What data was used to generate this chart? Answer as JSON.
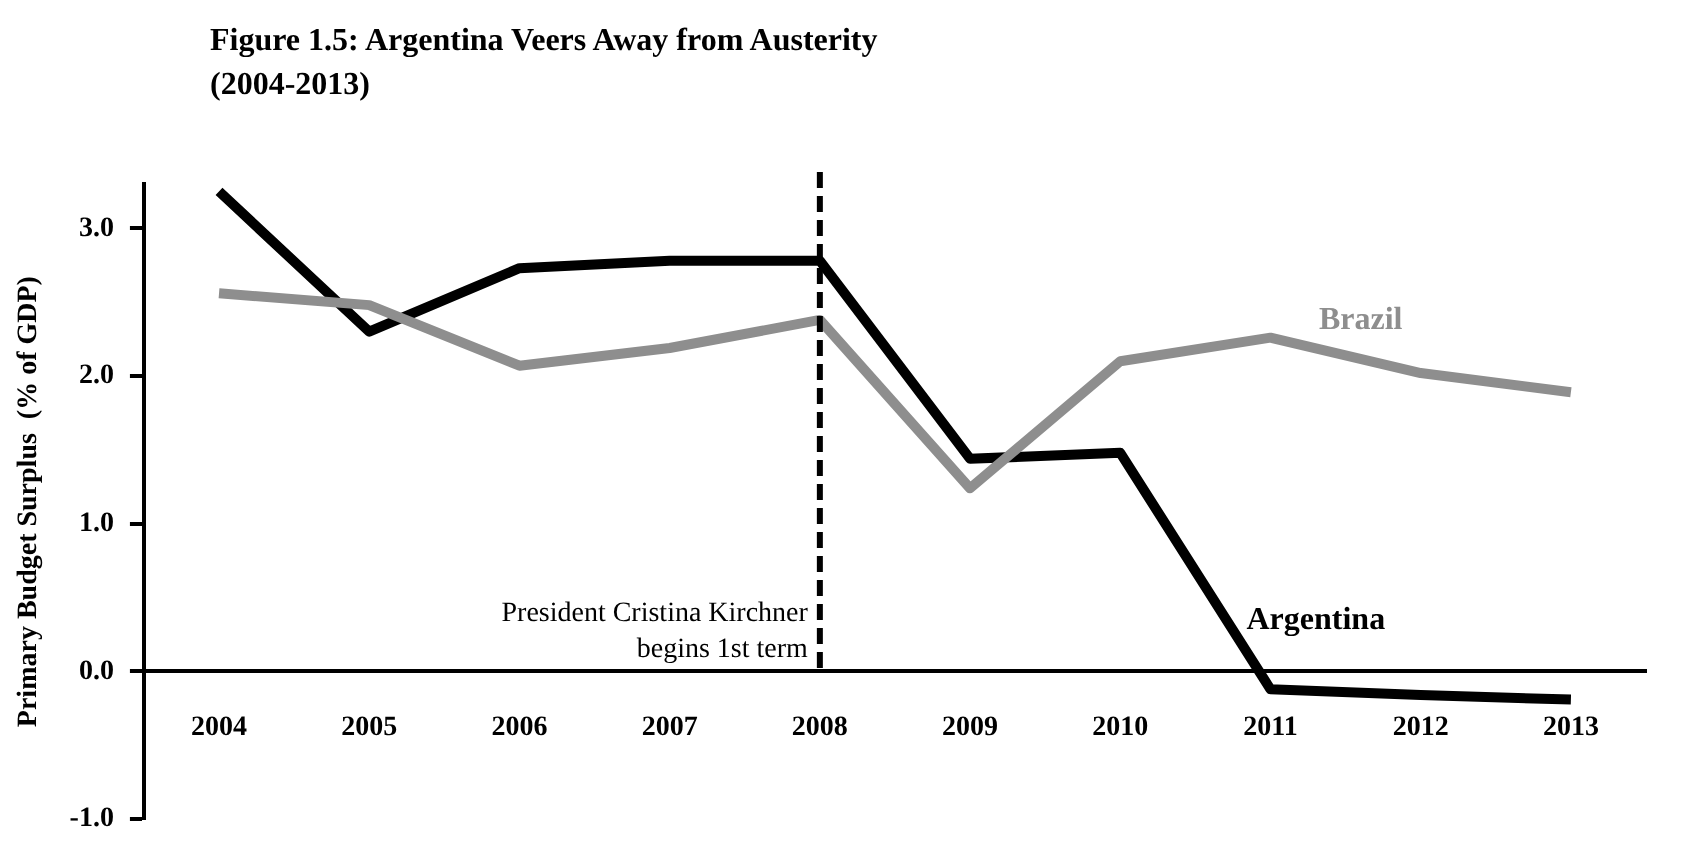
{
  "chart_data": {
    "type": "line",
    "title": "Figure 1.5: Argentina Veers Away from Austerity",
    "subtitle": "(2004-2013)",
    "ylabel": "Primary Budget Surplus  (% of GDP)",
    "categories": [
      "2004",
      "2005",
      "2006",
      "2007",
      "2008",
      "2009",
      "2010",
      "2011",
      "2012",
      "2013"
    ],
    "series": [
      {
        "name": "Brazil",
        "color": "#8e8e8e",
        "values": [
          2.56,
          2.48,
          2.07,
          2.19,
          2.38,
          1.24,
          2.1,
          2.26,
          2.02,
          1.89
        ]
      },
      {
        "name": "Argentina",
        "color": "#000000",
        "values": [
          3.25,
          2.3,
          2.73,
          2.78,
          2.78,
          1.44,
          1.48,
          -0.12,
          -0.16,
          -0.19
        ]
      }
    ],
    "ylim": [
      -1,
      3.3
    ],
    "yticks": [
      {
        "value": -1,
        "label": "-1.0"
      },
      {
        "value": 0,
        "label": "0.0"
      },
      {
        "value": 1,
        "label": "1.0"
      },
      {
        "value": 2,
        "label": "2.0"
      },
      {
        "value": 3,
        "label": "3.0"
      }
    ],
    "ref_lines": [
      {
        "axis": "x",
        "value": "2008",
        "label": "President Cristina Kirchner begins 1st term",
        "line_style": "dashed",
        "color": "#000000"
      }
    ],
    "grid": false,
    "legend": false,
    "marker": "none",
    "line_style": "solid"
  }
}
